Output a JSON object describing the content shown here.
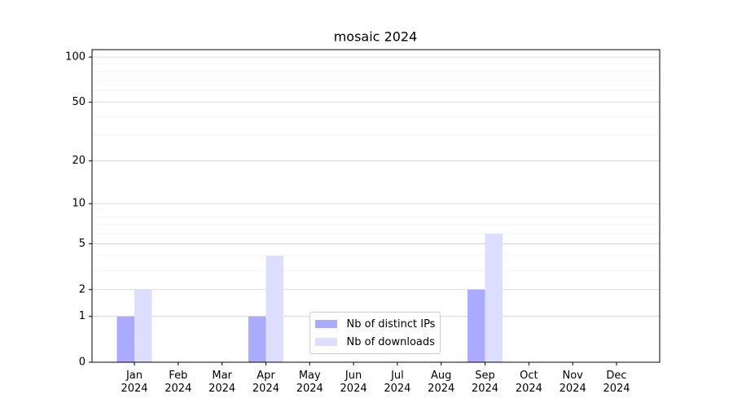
{
  "chart_data": {
    "type": "bar",
    "title": "mosaic 2024",
    "categories": [
      "Jan\n2024",
      "Feb\n2024",
      "Mar\n2024",
      "Apr\n2024",
      "May\n2024",
      "Jun\n2024",
      "Jul\n2024",
      "Aug\n2024",
      "Sep\n2024",
      "Oct\n2024",
      "Nov\n2024",
      "Dec\n2024"
    ],
    "series": [
      {
        "name": "Nb of distinct IPs",
        "color": "#aaaaff",
        "values": [
          1,
          0,
          0,
          1,
          0,
          0,
          0,
          0,
          2,
          0,
          0,
          0
        ]
      },
      {
        "name": "Nb of downloads",
        "color": "#ddddff",
        "values": [
          2,
          0,
          0,
          4,
          0,
          0,
          0,
          0,
          6,
          0,
          0,
          0
        ]
      }
    ],
    "yscale": "log1p",
    "ylim": [
      0,
      112
    ],
    "yticks": [
      0,
      1,
      2,
      5,
      10,
      20,
      50,
      100
    ],
    "minor_yticks": [
      3,
      4,
      6,
      7,
      8,
      9,
      30,
      40,
      60,
      70,
      80,
      90
    ],
    "grid": true,
    "legend": "lower center"
  }
}
